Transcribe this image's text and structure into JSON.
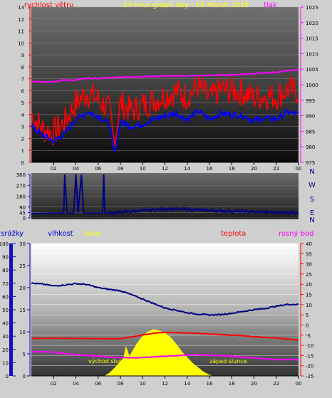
{
  "header": {
    "wind_label": "rychlost větru",
    "title": "24 hour graph day : 03 March 2018",
    "pressure_label": "tlak"
  },
  "direction_labels": [
    "N",
    "W",
    "S",
    "E",
    "N"
  ],
  "bottom_header": {
    "rain_label": "srážky",
    "humidity_label": "vlhkost",
    "solar_label": "Solar",
    "temperature_label": "teplota",
    "dewpoint_label": "rosný bod"
  },
  "annotations": {
    "sunrise": "východ slunce",
    "sunset": "západ slunce"
  },
  "colors": {
    "wind_gust": "#ff0000",
    "wind_avg": "#0000ff",
    "pressure": "#ff00ff",
    "direction": "#000080",
    "humidity": "#000080",
    "solar": "#ffff00",
    "temperature": "#ff0000",
    "dewpoint": "#ff00ff"
  },
  "chart_data": [
    {
      "type": "line",
      "name": "wind-pressure",
      "x_ticks": [
        "02",
        "04",
        "06",
        "08",
        "10",
        "12",
        "14",
        "16",
        "18",
        "20",
        "22",
        "00"
      ],
      "y_left_ticks": [
        "0",
        "1",
        "2",
        "3",
        "4",
        "5",
        "6",
        "7",
        "8",
        "9",
        "10",
        "11",
        "12",
        "13"
      ],
      "y_right_ticks": [
        "975",
        "980",
        "985",
        "990",
        "995",
        "1000",
        "1005",
        "1010",
        "1015",
        "1020",
        "1025"
      ],
      "ylim_left": [
        0,
        13
      ],
      "ylim_right": [
        975,
        1025
      ],
      "x_hours": [
        0,
        1,
        2,
        3,
        4,
        5,
        6,
        7,
        7.5,
        8,
        9,
        10,
        11,
        12,
        13,
        14,
        15,
        16,
        17,
        18,
        19,
        20,
        21,
        22,
        23,
        24
      ],
      "series": [
        {
          "axis": "left",
          "values": [
            4.0,
            2.8,
            2.5,
            3.4,
            5.0,
            5.8,
            5.3,
            4.4,
            1.5,
            5.0,
            4.3,
            4.8,
            5.2,
            5.6,
            5.9,
            5.5,
            6.4,
            5.3,
            6.1,
            6.0,
            5.9,
            5.4,
            5.6,
            5.5,
            6.1,
            5.9
          ]
        },
        {
          "axis": "left",
          "values": [
            3.0,
            2.3,
            1.8,
            2.4,
            3.6,
            4.2,
            3.9,
            3.2,
            0.7,
            3.4,
            3.0,
            3.2,
            3.6,
            3.9,
            4.1,
            3.6,
            4.3,
            3.6,
            4.1,
            4.0,
            3.9,
            3.5,
            3.7,
            3.6,
            4.2,
            4.0
          ]
        },
        {
          "axis": "right",
          "values": [
            1001,
            1001,
            1001,
            1001.5,
            1001.5,
            1002,
            1002,
            1002.3,
            1002.3,
            1002.5,
            1002.5,
            1002.6,
            1002.7,
            1002.8,
            1002.8,
            1002.9,
            1002.9,
            1003,
            1003.1,
            1003.2,
            1003.4,
            1003.6,
            1003.8,
            1004,
            1004.6,
            1004.8
          ]
        }
      ]
    },
    {
      "type": "line",
      "name": "wind-direction",
      "y_ticks": [
        "0",
        "45",
        "90",
        "180",
        "270",
        "360"
      ],
      "ylim": [
        0,
        360
      ],
      "x_hours": [
        0,
        2,
        2.9,
        3.0,
        3.2,
        3.8,
        4.0,
        4.2,
        4.5,
        4.7,
        5.0,
        6.0,
        6.4,
        6.5,
        6.6,
        7.0,
        10,
        12,
        14,
        16,
        18,
        20,
        22,
        24
      ],
      "series": [
        {
          "values": [
            35,
            40,
            40,
            360,
            40,
            40,
            360,
            40,
            360,
            40,
            40,
            40,
            40,
            360,
            40,
            40,
            60,
            75,
            70,
            62,
            55,
            50,
            45,
            45
          ]
        }
      ]
    },
    {
      "type": "line",
      "name": "humidity-temperature",
      "x_ticks": [
        "02",
        "04",
        "06",
        "08",
        "10",
        "12",
        "14",
        "16",
        "18",
        "20",
        "22",
        "00"
      ],
      "y_rain_ticks": [
        "0",
        "10",
        "20",
        "30",
        "40",
        "50",
        "60",
        "70",
        "80",
        "90",
        "100"
      ],
      "y_humidity_ticks": [
        "0",
        "5",
        "10",
        "15",
        "20",
        "25",
        "30"
      ],
      "y_temp_ticks": [
        "-25",
        "-20",
        "-15",
        "-10",
        "-5",
        "0",
        "5",
        "10",
        "15",
        "20",
        "25",
        "30",
        "35",
        "40"
      ],
      "ylim_humidity": [
        0,
        30
      ],
      "ylim_temp": [
        -25,
        40
      ],
      "x_hours": [
        0,
        1,
        2,
        3,
        4,
        5,
        6,
        7,
        8,
        9,
        10,
        11,
        12,
        13,
        14,
        15,
        16,
        17,
        18,
        19,
        20,
        21,
        22,
        23,
        24
      ],
      "series": [
        {
          "values": [
            21.0,
            20.8,
            20.4,
            20.6,
            20.9,
            20.7,
            20.0,
            19.6,
            19.3,
            18.4,
            17.4,
            16.4,
            15.4,
            14.9,
            14.3,
            14.0,
            13.8,
            13.9,
            14.2,
            14.6,
            15.0,
            15.3,
            15.8,
            16.2,
            16.2
          ]
        },
        {
          "values": [
            -6.5,
            -6.5,
            -6.5,
            -6.5,
            -6.6,
            -6.6,
            -6.7,
            -6.7,
            -6.8,
            -5.8,
            -4.9,
            -4.0,
            -3.6,
            -3.7,
            -3.9,
            -4.1,
            -4.4,
            -4.7,
            -5.0,
            -5.3,
            -5.7,
            -6.1,
            -6.4,
            -6.9,
            -7.4
          ]
        },
        {
          "values": [
            -13.0,
            -13.1,
            -13.4,
            -14.0,
            -14.6,
            -15.0,
            -15.3,
            -15.7,
            -16.1,
            -16.1,
            -16.0,
            -15.6,
            -15.3,
            -15.1,
            -14.7,
            -14.6,
            -14.8,
            -15.0,
            -15.3,
            -15.8,
            -16.1,
            -16.6,
            -16.9,
            -17.0,
            -17.0
          ]
        }
      ],
      "solar": {
        "x_hours": [
          6.6,
          7.0,
          7.5,
          8.0,
          8.3,
          8.5,
          8.8,
          9.0,
          9.5,
          10.0,
          10.5,
          11.0,
          11.5,
          12.0,
          12.5,
          13.0,
          13.5,
          14.0,
          14.5,
          15.0,
          15.5,
          16.0,
          16.2
        ],
        "values": [
          0,
          0.6,
          1.8,
          3.2,
          4.0,
          6.5,
          4.4,
          5.2,
          7.3,
          9.0,
          10.0,
          10.5,
          10.2,
          9.7,
          8.7,
          7.2,
          5.5,
          4.1,
          2.8,
          1.8,
          0.8,
          0.2,
          0
        ]
      }
    }
  ]
}
